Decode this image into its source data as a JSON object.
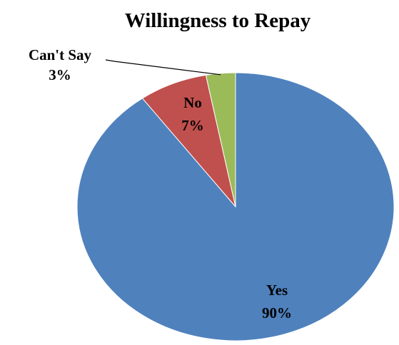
{
  "chart_data": {
    "type": "pie",
    "title": "Willingness to Repay",
    "slices": [
      {
        "name": "Yes",
        "value": 90,
        "label": "90%",
        "color": "#4F81BD"
      },
      {
        "name": "No",
        "value": 7,
        "label": "7%",
        "color": "#C0504D"
      },
      {
        "name": "Can't Say",
        "value": 3,
        "label": "3%",
        "color": "#9BBB59"
      }
    ],
    "start_angle": "12 o'clock",
    "direction": "clockwise",
    "legend": "none",
    "callout": "Can't Say"
  }
}
